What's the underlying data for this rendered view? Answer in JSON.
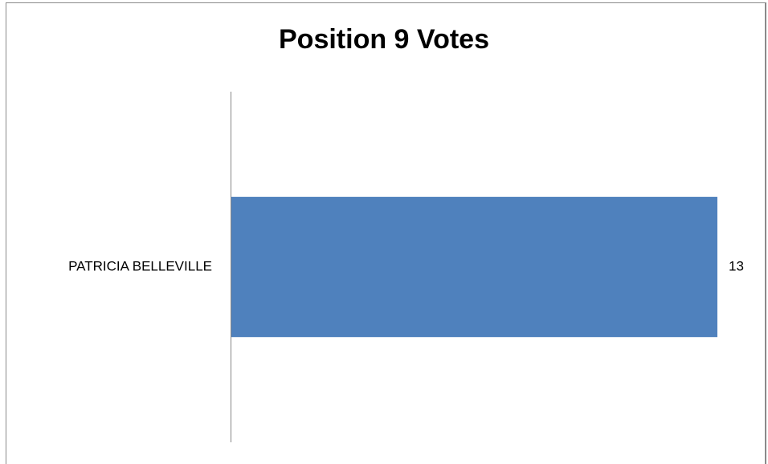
{
  "chart_data": {
    "type": "bar",
    "orientation": "horizontal",
    "title": "Position 9 Votes",
    "categories": [
      "PATRICIA BELLEVILLE"
    ],
    "values": [
      13
    ],
    "data_labels": [
      "13"
    ],
    "xlim": [
      0,
      13
    ],
    "grid": false,
    "legend": "none",
    "bar_color": "#4F81BD"
  }
}
